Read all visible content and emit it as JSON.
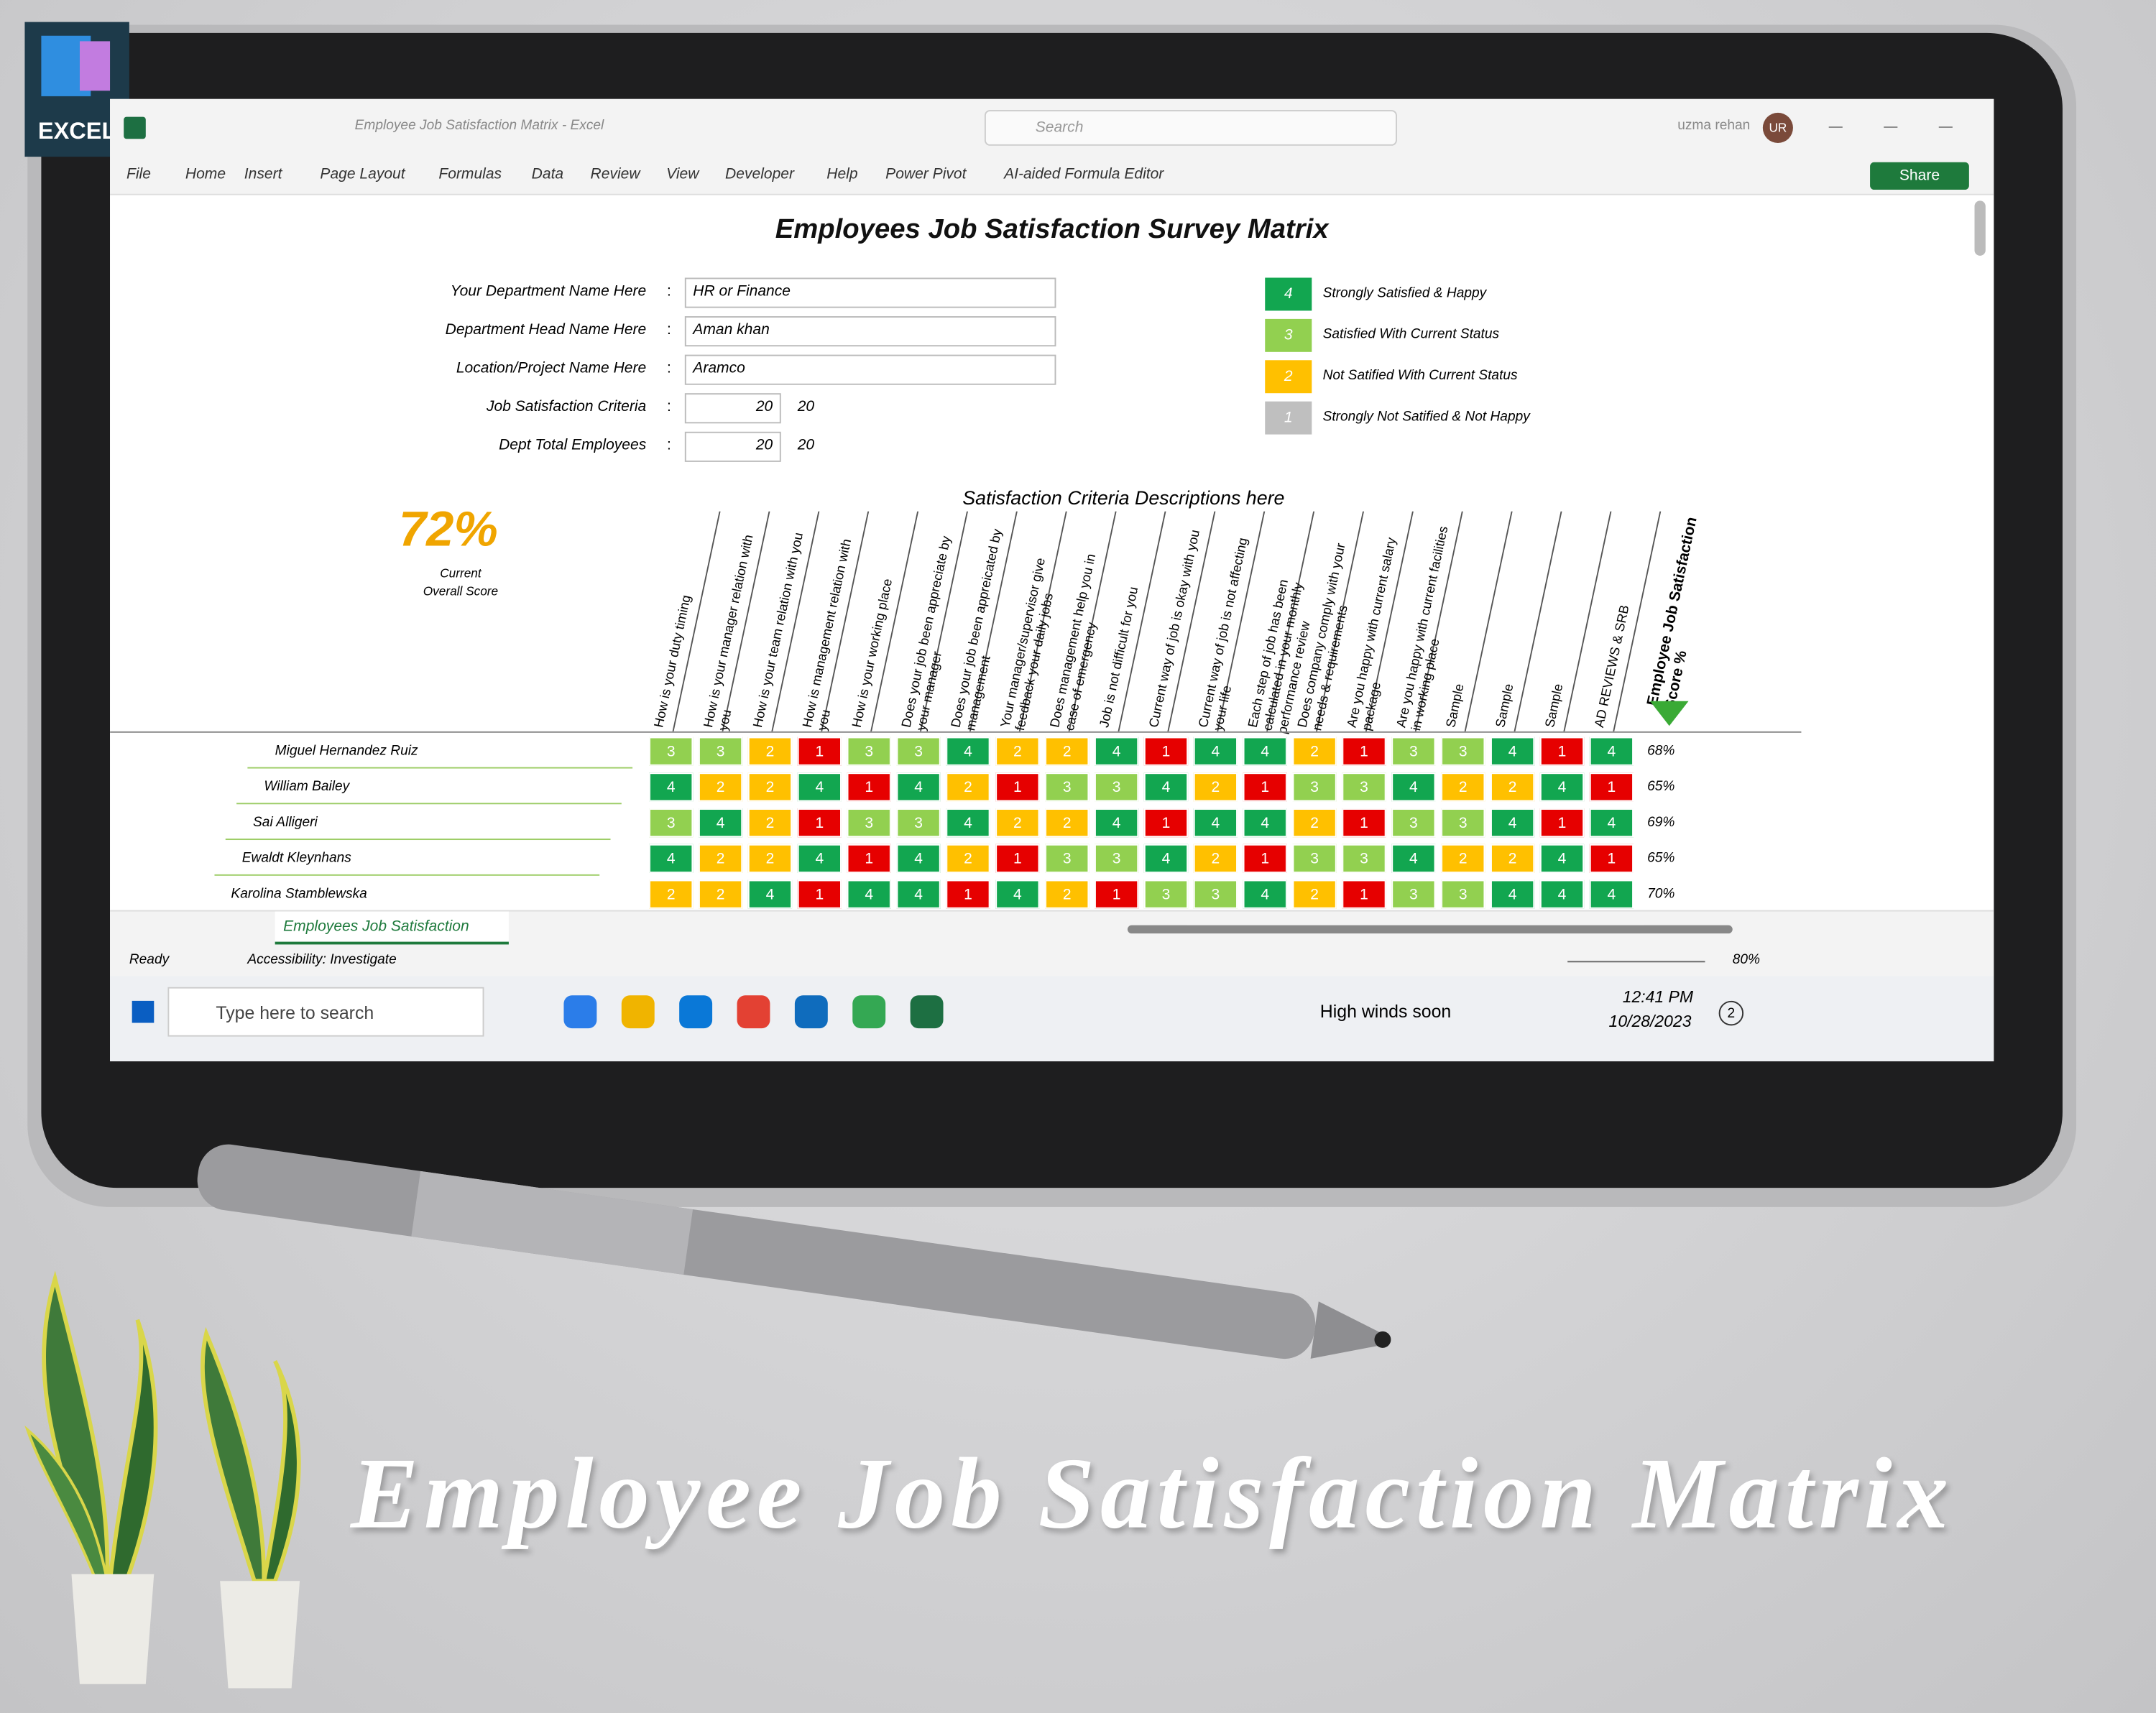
{
  "badge": "EXCEL",
  "window": {
    "title": "Employee Job Satisfaction Matrix  -  Excel",
    "search": "Search",
    "user": "uzma rehan",
    "initials": "UR",
    "share": "Share"
  },
  "ribbon": [
    "File",
    "Home",
    "Insert",
    "Page Layout",
    "Formulas",
    "Data",
    "Review",
    "View",
    "Developer",
    "Help",
    "Power Pivot",
    "AI-aided Formula Editor"
  ],
  "sheet": {
    "title": "Employees Job Satisfaction Survey Matrix",
    "separator": ":",
    "fields": [
      {
        "label": "Your Department Name Here",
        "value": "HR or Finance"
      },
      {
        "label": "Department Head Name Here",
        "value": "Aman khan"
      },
      {
        "label": "Location/Project Name Here",
        "value": "Aramco"
      },
      {
        "label": "Job Satisfaction Criteria",
        "value": 20,
        "count": 20
      },
      {
        "label": "Dept Total Employees",
        "value": 20,
        "count": 20
      }
    ],
    "legend": [
      {
        "score": 4,
        "label": "Strongly Satisfied & Happy",
        "color": "#12a650"
      },
      {
        "score": 3,
        "label": "Satisfied With Current Status",
        "color": "#92d050"
      },
      {
        "score": 2,
        "label": "Not Satified With Current Status",
        "color": "#ffc000"
      },
      {
        "score": 1,
        "label": "Strongly Not Satified & Not Happy",
        "color": "#bfbfbf"
      }
    ],
    "rating_colors": {
      "1": "#e60000",
      "2": "#ffc000",
      "3": "#92d050",
      "4": "#12a650"
    },
    "score": {
      "value": "72%",
      "label": [
        "Current",
        "Overall Score"
      ]
    },
    "criteria_title": "Satisfaction Criteria Descriptions here",
    "criteria": [
      "How is your duty timing",
      "How is your manager relation with you",
      "How is your team relation with you",
      "How is management relation with you",
      "How is your working place",
      "Does your job been appreciate by your manager",
      "Does your job been appreicated by management",
      "Your manager/supervisor give feedback your daily jobs",
      "Does management help you in case of emergency",
      "Job is not difficult for you",
      "Current way of job is okay with you",
      "Current way of job is not affecting your life",
      "Each step of job has been calculated in your monthly performance review",
      "Does company comply with your needs & requirements",
      "Are you happy with current salary package",
      "Are you happy with current facilities in working place",
      "Sample",
      "Sample",
      "Sample",
      "AD REVIEWS & SRB"
    ],
    "score_header": "Employee Job Satisfaction Score %",
    "employees": [
      {
        "name": "Miguel Hernandez Ruiz",
        "ratings": [
          3,
          3,
          2,
          1,
          3,
          3,
          4,
          2,
          2,
          4,
          1,
          4,
          4,
          2,
          1,
          3,
          3,
          4,
          1,
          4
        ],
        "score": "68%"
      },
      {
        "name": "William Bailey",
        "ratings": [
          4,
          2,
          2,
          4,
          1,
          4,
          2,
          1,
          3,
          3,
          4,
          2,
          1,
          3,
          3,
          4,
          2,
          2,
          4,
          1
        ],
        "score": "65%"
      },
      {
        "name": "Sai Alligeri",
        "ratings": [
          3,
          4,
          2,
          1,
          3,
          3,
          4,
          2,
          2,
          4,
          1,
          4,
          4,
          2,
          1,
          3,
          3,
          4,
          1,
          4
        ],
        "score": "69%"
      },
      {
        "name": "Ewaldt Kleynhans",
        "ratings": [
          4,
          2,
          2,
          4,
          1,
          4,
          2,
          1,
          3,
          3,
          4,
          2,
          1,
          3,
          3,
          4,
          2,
          2,
          4,
          1
        ],
        "score": "65%"
      },
      {
        "name": "Karolina Stamblewska",
        "ratings": [
          2,
          2,
          4,
          1,
          4,
          4,
          1,
          4,
          2,
          1,
          3,
          3,
          4,
          2,
          1,
          3,
          3,
          4,
          4,
          4
        ],
        "score": "70%"
      }
    ]
  },
  "tab": "Employees Job Satisfaction",
  "status": {
    "ready": "Ready",
    "accessibility": "Accessibility: Investigate",
    "zoom": "80%"
  },
  "taskbar": {
    "search": "Type here to search",
    "weather": "High winds soon",
    "time": "12:41 PM",
    "date": "10/28/2023",
    "notifications": 2
  },
  "banner": "Employee Job Satisfaction Matrix"
}
